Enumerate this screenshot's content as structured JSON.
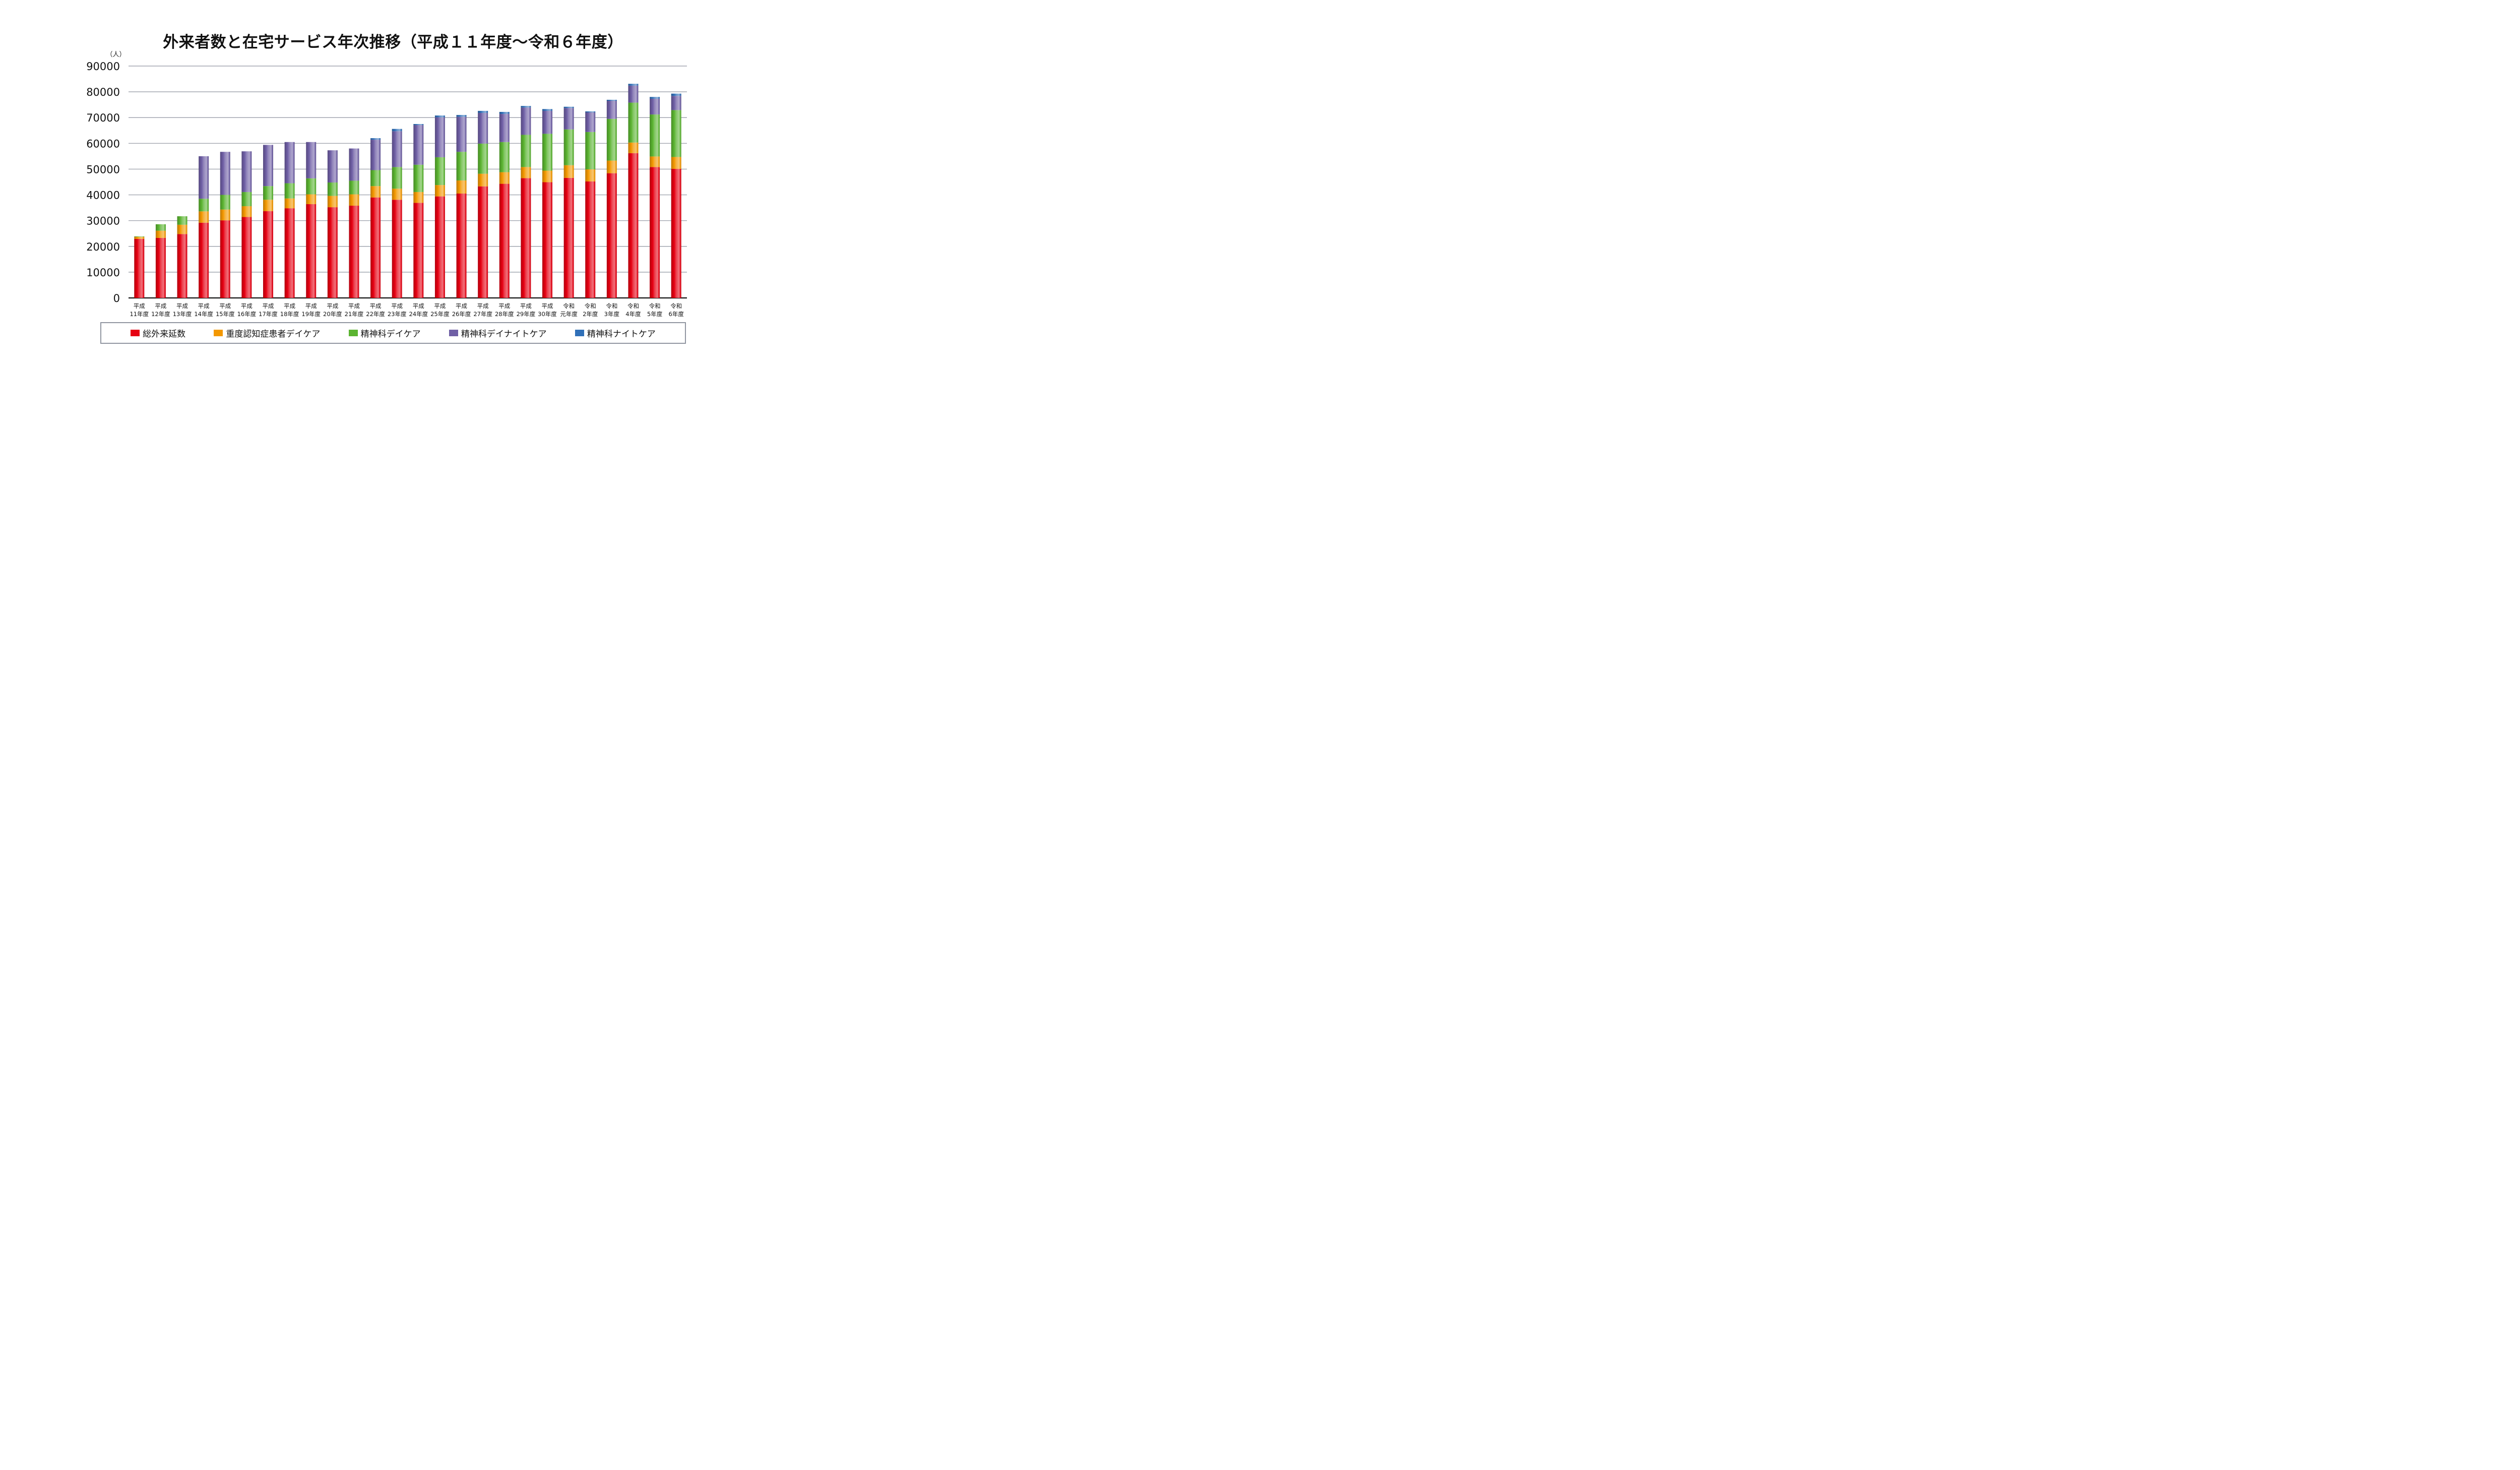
{
  "chart_data": {
    "type": "bar",
    "stacked": true,
    "title": "外来者数と在宅サービス年次推移（平成１１年度～令和６年度）",
    "ylabel": "（人）",
    "xlabel": "",
    "ylim": [
      0,
      90000
    ],
    "yticks": [
      0,
      10000,
      20000,
      30000,
      40000,
      50000,
      60000,
      70000,
      80000,
      90000
    ],
    "grid": true,
    "legend_position": "bottom",
    "categories": [
      [
        "平成",
        "11年度"
      ],
      [
        "平成",
        "12年度"
      ],
      [
        "平成",
        "13年度"
      ],
      [
        "平成",
        "14年度"
      ],
      [
        "平成",
        "15年度"
      ],
      [
        "平成",
        "16年度"
      ],
      [
        "平成",
        "17年度"
      ],
      [
        "平成",
        "18年度"
      ],
      [
        "平成",
        "19年度"
      ],
      [
        "平成",
        "20年度"
      ],
      [
        "平成",
        "21年度"
      ],
      [
        "平成",
        "22年度"
      ],
      [
        "平成",
        "23年度"
      ],
      [
        "平成",
        "24年度"
      ],
      [
        "平成",
        "25年度"
      ],
      [
        "平成",
        "26年度"
      ],
      [
        "平成",
        "27年度"
      ],
      [
        "平成",
        "28年度"
      ],
      [
        "平成",
        "29年度"
      ],
      [
        "平成",
        "30年度"
      ],
      [
        "令和",
        "元年度"
      ],
      [
        "令和",
        "2年度"
      ],
      [
        "令和",
        "3年度"
      ],
      [
        "令和",
        "4年度"
      ],
      [
        "令和",
        "5年度"
      ],
      [
        "令和",
        "6年度"
      ]
    ],
    "series": [
      {
        "name": "総外来延数",
        "color": "#E60012",
        "values": [
          22900,
          23300,
          24800,
          29200,
          30100,
          31400,
          33700,
          34800,
          36400,
          35200,
          35800,
          39000,
          38100,
          36900,
          39400,
          40500,
          43300,
          44300,
          46500,
          44900,
          46600,
          45200,
          48400,
          56200,
          50800,
          50100
        ]
      },
      {
        "name": "重度認知症患者デイケア",
        "color": "#F39800",
        "values": [
          800,
          2800,
          3600,
          4400,
          4200,
          4200,
          4400,
          3800,
          3800,
          4400,
          4400,
          4400,
          4300,
          4200,
          4400,
          5100,
          4900,
          4500,
          4300,
          4500,
          4900,
          4700,
          4900,
          4100,
          4100,
          4600
        ]
      },
      {
        "name": "精神科デイケア",
        "color": "#5BB431",
        "values": [
          200,
          2500,
          3300,
          4900,
          5700,
          5500,
          5300,
          5900,
          6200,
          5200,
          5300,
          6200,
          8400,
          10600,
          10800,
          11100,
          11700,
          11700,
          12500,
          14300,
          13900,
          14500,
          16200,
          15500,
          16300,
          18200
        ]
      },
      {
        "name": "精神科デイナイトケア",
        "color": "#6F5FA5",
        "values": [
          0,
          0,
          0,
          16500,
          16700,
          15800,
          16000,
          16000,
          14100,
          12500,
          12500,
          11800,
          13900,
          15400,
          15500,
          13600,
          11900,
          10900,
          10600,
          8900,
          8300,
          7600,
          7000,
          6600,
          6100,
          5500
        ]
      },
      {
        "name": "精神科ナイトケア",
        "color": "#3070B8",
        "values": [
          0,
          0,
          0,
          0,
          0,
          0,
          0,
          0,
          0,
          0,
          0,
          600,
          900,
          400,
          700,
          700,
          800,
          800,
          600,
          700,
          500,
          400,
          400,
          700,
          700,
          900
        ]
      }
    ]
  }
}
